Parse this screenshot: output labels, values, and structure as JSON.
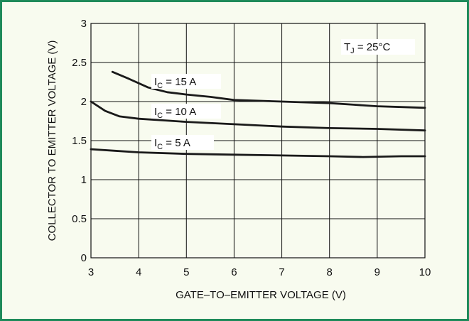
{
  "chart_data": {
    "type": "line",
    "xlabel": "GATE–TO–EMITTER VOLTAGE (V)",
    "ylabel": "COLLECTOR TO EMITTER VOLTAGE (V)",
    "xlim": [
      3,
      10
    ],
    "ylim": [
      0,
      3
    ],
    "grid": true,
    "x_ticks": [
      "3",
      "4",
      "5",
      "6",
      "7",
      "8",
      "9",
      "10"
    ],
    "y_ticks": [
      "0",
      "0.5",
      "1",
      "1.5",
      "2",
      "2.5",
      "3"
    ],
    "annotation": {
      "main": "T",
      "sub": "J",
      "rest": " = 25°C"
    },
    "series": [
      {
        "name": "I_C = 15 A",
        "label_main": "I",
        "label_sub": "C",
        "label_rest": " = 15 A",
        "x": [
          3.45,
          3.8,
          4.2,
          4.6,
          5.0,
          5.5,
          6.0,
          6.5,
          7.0,
          7.5,
          8.0,
          8.5,
          9.0,
          9.5,
          10.0
        ],
        "y": [
          2.38,
          2.29,
          2.18,
          2.12,
          2.09,
          2.06,
          2.02,
          2.01,
          2.0,
          1.99,
          1.98,
          1.96,
          1.94,
          1.93,
          1.92
        ]
      },
      {
        "name": "I_C = 10 A",
        "label_main": "I",
        "label_sub": "C",
        "label_rest": " = 10 A",
        "x": [
          3.0,
          3.3,
          3.6,
          4.0,
          4.5,
          5.0,
          6.0,
          7.0,
          8.0,
          9.0,
          10.0
        ],
        "y": [
          2.0,
          1.88,
          1.81,
          1.78,
          1.76,
          1.74,
          1.71,
          1.68,
          1.66,
          1.65,
          1.63
        ]
      },
      {
        "name": "I_C = 5 A",
        "label_main": "I",
        "label_sub": "C",
        "label_rest": " = 5 A",
        "x": [
          3.0,
          3.5,
          4.0,
          5.0,
          6.0,
          7.0,
          8.0,
          8.7,
          9.5,
          10.0
        ],
        "y": [
          1.39,
          1.37,
          1.35,
          1.33,
          1.32,
          1.31,
          1.3,
          1.29,
          1.3,
          1.3
        ]
      }
    ]
  }
}
